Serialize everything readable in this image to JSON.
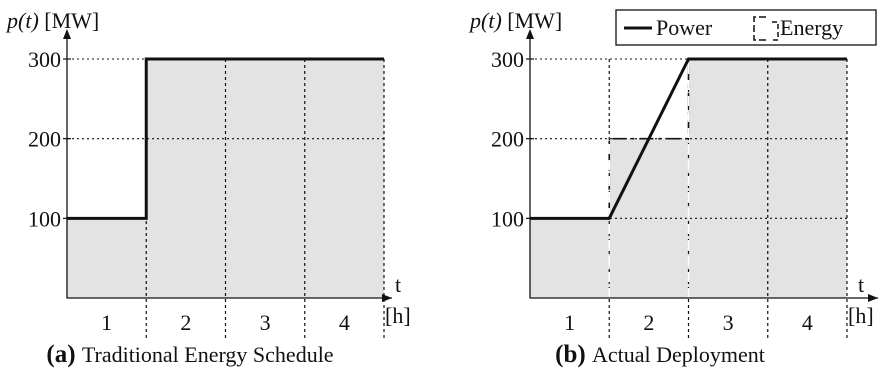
{
  "chart_data": [
    {
      "type": "area",
      "panel": "(a)",
      "caption_text": "Traditional Energy Schedule",
      "ylabel_italic": "p(t)",
      "ylabel_unit": "[MW]",
      "xlabel": "t",
      "xlabel_unit": "[h]",
      "yticks": [
        "100",
        "200",
        "300"
      ],
      "ylim": [
        0,
        300
      ],
      "categories": [
        "1",
        "2",
        "3",
        "4"
      ],
      "series": [
        {
          "kind": "energy_blocks",
          "values": [
            100,
            300,
            300,
            300
          ]
        },
        {
          "kind": "power",
          "x": [
            0,
            1,
            1,
            4
          ],
          "y": [
            100,
            100,
            300,
            300
          ]
        }
      ],
      "legend": null
    },
    {
      "type": "area",
      "panel": "(b)",
      "caption_text": "Actual Deployment",
      "ylabel_italic": "p(t)",
      "ylabel_unit": "[MW]",
      "xlabel": "t",
      "xlabel_unit": "[h]",
      "yticks": [
        "100",
        "200",
        "300"
      ],
      "ylim": [
        0,
        300
      ],
      "categories": [
        "1",
        "2",
        "3",
        "4"
      ],
      "series": [
        {
          "kind": "energy_blocks",
          "values": [
            100,
            200,
            300,
            300
          ]
        },
        {
          "kind": "power",
          "x": [
            0,
            1,
            2,
            4
          ],
          "y": [
            100,
            100,
            300,
            300
          ]
        }
      ],
      "legend": {
        "placement": "top-right",
        "items": [
          {
            "label": "Power",
            "style": "solid-line"
          },
          {
            "label": "Energy",
            "style": "dashed-bracket"
          }
        ]
      }
    }
  ],
  "colors": {
    "fill": "#e3e3e3",
    "line": "#111111"
  }
}
